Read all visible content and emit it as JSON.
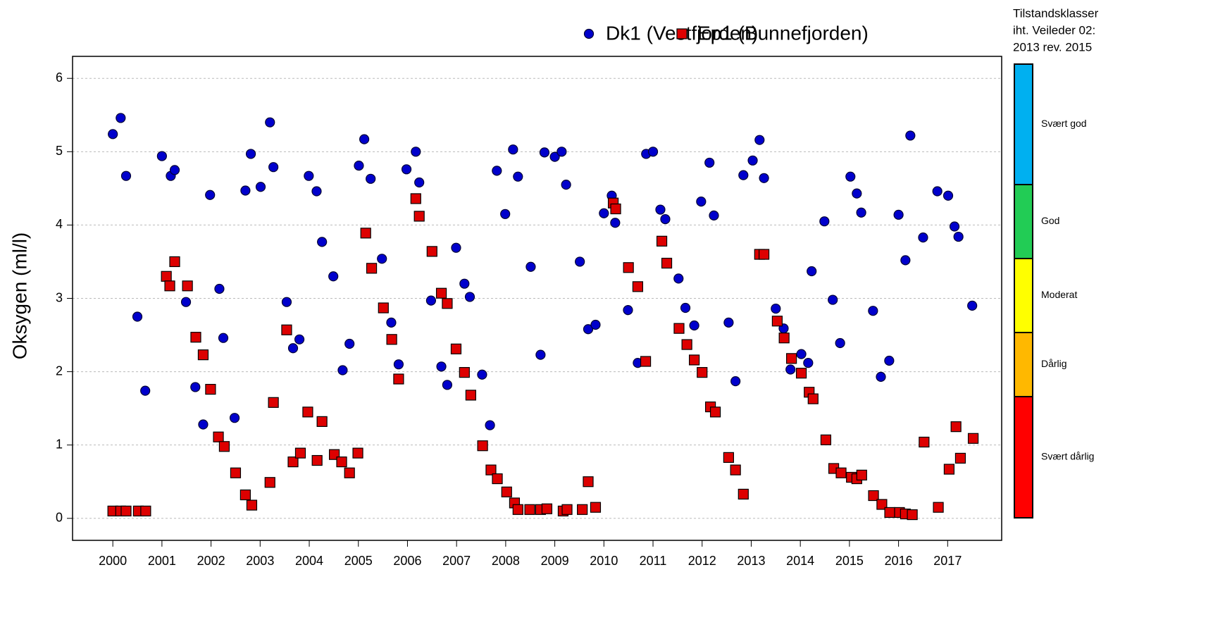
{
  "chart_data": {
    "type": "scatter",
    "y_label": "Oksygen (ml/l)",
    "xlim": [
      1999.18,
      2018.1
    ],
    "ylim": [
      -0.3,
      6.3
    ],
    "xticks": [
      2000,
      2001,
      2002,
      2003,
      2004,
      2005,
      2006,
      2007,
      2008,
      2009,
      2010,
      2011,
      2012,
      2013,
      2014,
      2015,
      2016,
      2017
    ],
    "yticks": [
      0,
      1,
      2,
      3,
      4,
      5,
      6
    ],
    "grid": true,
    "legend_position": "top-right",
    "series": [
      {
        "name": "Dk1 (Vestfjorden)",
        "color": "#0000cc",
        "marker": "circle",
        "x": [
          2000.0,
          2000.16,
          2000.27,
          2000.5,
          2000.66,
          2001.0,
          2001.18,
          2001.26,
          2001.49,
          2001.68,
          2001.84,
          2001.98,
          2002.17,
          2002.25,
          2002.48,
          2002.7,
          2002.81,
          2003.01,
          2003.2,
          2003.27,
          2003.54,
          2003.67,
          2003.8,
          2003.99,
          2004.15,
          2004.26,
          2004.49,
          2004.68,
          2004.82,
          2005.01,
          2005.12,
          2005.25,
          2005.48,
          2005.67,
          2005.82,
          2005.98,
          2006.17,
          2006.24,
          2006.48,
          2006.69,
          2006.81,
          2006.99,
          2007.16,
          2007.27,
          2007.52,
          2007.68,
          2007.82,
          2007.99,
          2008.15,
          2008.25,
          2008.51,
          2008.71,
          2008.79,
          2009.0,
          2009.14,
          2009.23,
          2009.51,
          2009.68,
          2009.83,
          2010.0,
          2010.16,
          2010.23,
          2010.49,
          2010.69,
          2010.86,
          2011.0,
          2011.15,
          2011.25,
          2011.52,
          2011.66,
          2011.84,
          2011.98,
          2012.15,
          2012.24,
          2012.54,
          2012.68,
          2012.84,
          2013.03,
          2013.17,
          2013.26,
          2013.5,
          2013.66,
          2013.8,
          2014.02,
          2014.16,
          2014.23,
          2014.49,
          2014.66,
          2014.81,
          2015.02,
          2015.15,
          2015.24,
          2015.48,
          2015.64,
          2015.81,
          2016.0,
          2016.14,
          2016.24,
          2016.5,
          2016.79,
          2017.01,
          2017.14,
          2017.22,
          2017.5
        ],
        "values": [
          5.24,
          5.46,
          4.67,
          2.75,
          1.74,
          4.94,
          4.67,
          4.75,
          2.95,
          1.79,
          1.28,
          4.41,
          3.13,
          2.46,
          1.37,
          4.47,
          4.97,
          4.52,
          5.4,
          4.79,
          2.95,
          2.32,
          2.44,
          4.67,
          4.46,
          3.77,
          3.3,
          2.02,
          2.38,
          4.81,
          5.17,
          4.63,
          3.54,
          2.67,
          2.1,
          4.76,
          5.0,
          4.58,
          2.97,
          2.07,
          1.82,
          3.69,
          3.2,
          3.02,
          1.96,
          1.27,
          4.74,
          4.15,
          5.03,
          4.66,
          3.43,
          2.23,
          4.99,
          4.93,
          5.0,
          4.55,
          3.5,
          2.58,
          2.64,
          4.16,
          4.4,
          4.03,
          2.84,
          2.12,
          4.97,
          5.0,
          4.21,
          4.08,
          3.27,
          2.87,
          2.63,
          4.32,
          4.85,
          4.13,
          2.67,
          1.87,
          4.68,
          4.88,
          5.16,
          4.64,
          2.86,
          2.59,
          2.03,
          2.24,
          2.12,
          3.37,
          4.05,
          2.98,
          2.39,
          4.66,
          4.43,
          4.17,
          2.83,
          1.93,
          2.15,
          4.14,
          3.52,
          5.22,
          3.83,
          4.46,
          4.4,
          3.98,
          3.84,
          2.9
        ]
      },
      {
        "name": "Ep1 (Bunnefjorden)",
        "color": "#dd0000",
        "marker": "square",
        "x": [
          2000.0,
          2000.16,
          2000.27,
          2000.52,
          2000.67,
          2001.09,
          2001.16,
          2001.26,
          2001.52,
          2001.69,
          2001.84,
          2001.99,
          2002.15,
          2002.27,
          2002.5,
          2002.7,
          2002.83,
          2003.2,
          2003.27,
          2003.54,
          2003.67,
          2003.82,
          2003.97,
          2004.16,
          2004.26,
          2004.51,
          2004.66,
          2004.82,
          2004.99,
          2005.15,
          2005.27,
          2005.51,
          2005.68,
          2005.82,
          2006.17,
          2006.24,
          2006.5,
          2006.69,
          2006.81,
          2006.99,
          2007.16,
          2007.29,
          2007.53,
          2007.7,
          2007.83,
          2008.02,
          2008.18,
          2008.25,
          2008.49,
          2008.71,
          2008.84,
          2009.17,
          2009.25,
          2009.56,
          2009.68,
          2009.83,
          2010.19,
          2010.24,
          2010.5,
          2010.69,
          2010.85,
          2011.18,
          2011.28,
          2011.53,
          2011.69,
          2011.84,
          2012.0,
          2012.17,
          2012.27,
          2012.54,
          2012.68,
          2012.84,
          2013.17,
          2013.26,
          2013.53,
          2013.67,
          2013.82,
          2014.02,
          2014.18,
          2014.26,
          2014.52,
          2014.68,
          2014.83,
          2015.04,
          2015.15,
          2015.25,
          2015.49,
          2015.66,
          2015.82,
          2016.02,
          2016.14,
          2016.28,
          2016.52,
          2016.81,
          2017.03,
          2017.17,
          2017.26,
          2017.52
        ],
        "values": [
          0.1,
          0.1,
          0.1,
          0.1,
          0.1,
          3.3,
          3.17,
          3.5,
          3.17,
          2.47,
          2.23,
          1.76,
          1.11,
          0.98,
          0.62,
          0.32,
          0.18,
          0.49,
          1.58,
          2.57,
          0.77,
          0.89,
          1.45,
          0.79,
          1.32,
          0.87,
          0.77,
          0.62,
          0.89,
          3.89,
          3.41,
          2.87,
          2.44,
          1.9,
          4.36,
          4.12,
          3.64,
          3.07,
          2.93,
          2.31,
          1.99,
          1.68,
          0.99,
          0.66,
          0.54,
          0.36,
          0.21,
          0.12,
          0.12,
          0.12,
          0.13,
          0.1,
          0.12,
          0.12,
          0.5,
          0.15,
          4.3,
          4.22,
          3.42,
          3.16,
          2.14,
          3.78,
          3.48,
          2.59,
          2.37,
          2.16,
          1.99,
          1.52,
          1.45,
          0.83,
          0.66,
          0.33,
          3.6,
          3.6,
          2.69,
          2.46,
          2.18,
          1.98,
          1.72,
          1.63,
          1.07,
          0.68,
          0.62,
          0.56,
          0.54,
          0.59,
          0.31,
          0.19,
          0.08,
          0.08,
          0.06,
          0.05,
          1.04,
          0.15,
          0.67,
          1.25,
          0.82,
          1.09
        ]
      }
    ],
    "class_legend": {
      "title": [
        "Tilstandsklasser",
        "iht. Veileder 02:",
        "2013 rev. 2015"
      ],
      "classes": [
        {
          "name": "Svært god",
          "color": "#00b0f0"
        },
        {
          "name": "God",
          "color": "#22cc55"
        },
        {
          "name": "Moderat",
          "color": "#ffff00"
        },
        {
          "name": "Dårlig",
          "color": "#ffb800"
        },
        {
          "name": "Svært dårlig",
          "color": "#ff0000"
        }
      ]
    }
  }
}
